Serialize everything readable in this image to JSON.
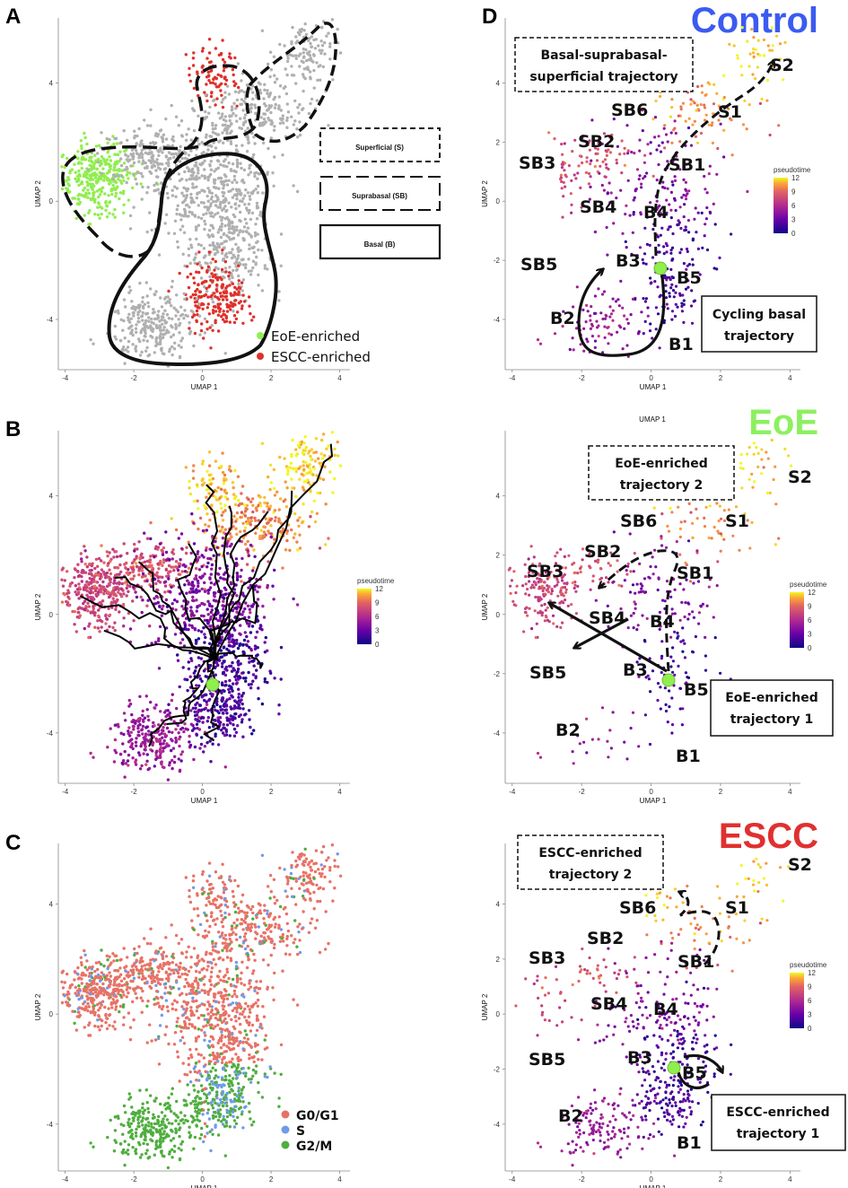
{
  "figure": {
    "panel_letters": [
      "A",
      "B",
      "C",
      "D"
    ],
    "pseudotime_label": "pseudotime",
    "colors": {
      "eoe": "#90ee4f",
      "escc": "#e0302a",
      "grey": "#b0b0b0",
      "control_title": "#3b5bf0",
      "eoe_title": "#8cf060",
      "escc_title": "#e03030",
      "g0g1": "#e87266",
      "s": "#6f9be8",
      "g2m": "#4fae3e"
    }
  },
  "chart_data": [
    {
      "panel": "A",
      "type": "scatter",
      "title": "",
      "xlabel": "UMAP 1",
      "ylabel": "UMAP 2",
      "x_ticks": [
        "-4",
        "-2",
        "0",
        "2",
        "4"
      ],
      "y_ticks": [
        "4",
        "0",
        "-4"
      ],
      "xlim": [
        -4.2,
        4.3
      ],
      "ylim": [
        -5.7,
        6.2
      ],
      "region_labels": [
        "Superficial (S)",
        "Suprabasal (SB)",
        "Basal (B)"
      ],
      "legend": [
        {
          "name": "EoE-enriched",
          "color": "#90ee4f"
        },
        {
          "name": "ESCC-enriched",
          "color": "#e0302a"
        }
      ]
    },
    {
      "panel": "B",
      "type": "scatter",
      "title": "",
      "xlabel": "UMAP 1",
      "ylabel": "UMAP 2",
      "x_ticks": [
        "-4",
        "-2",
        "0",
        "2",
        "4"
      ],
      "y_ticks": [
        "4",
        "0",
        "-4"
      ],
      "xlim": [
        -4.2,
        4.3
      ],
      "ylim": [
        -5.7,
        6.2
      ],
      "colorbar": {
        "label": "pseudotime",
        "ticks": [
          "12",
          "9",
          "6",
          "3",
          "0"
        ],
        "range": [
          0,
          12
        ]
      }
    },
    {
      "panel": "C",
      "type": "scatter",
      "title": "",
      "xlabel": "UMAP 1",
      "ylabel": "UMAP 2",
      "x_ticks": [
        "-4",
        "-2",
        "0",
        "2",
        "4"
      ],
      "y_ticks": [
        "4",
        "0",
        "-4"
      ],
      "xlim": [
        -4.2,
        4.3
      ],
      "ylim": [
        -5.7,
        6.2
      ],
      "legend": [
        {
          "name": "G0/G1",
          "color": "#e87266"
        },
        {
          "name": "S",
          "color": "#6f9be8"
        },
        {
          "name": "G2/M",
          "color": "#4fae3e"
        }
      ]
    },
    {
      "panel": "D-Control",
      "type": "scatter",
      "title": "Control",
      "xlabel": "UMAP 1",
      "ylabel": "UMAP 2",
      "x_ticks": [
        "-4",
        "-2",
        "0",
        "2",
        "4"
      ],
      "y_ticks": [
        "4",
        "2",
        "0",
        "-2",
        "-4"
      ],
      "xlim": [
        -4.2,
        4.3
      ],
      "ylim": [
        -5.7,
        6.2
      ],
      "colorbar": {
        "label": "pseudotime",
        "ticks": [
          "12",
          "9",
          "6",
          "3",
          "0"
        ],
        "range": [
          0,
          12
        ]
      },
      "cluster_labels": [
        "S2",
        "SB6",
        "S1",
        "SB2",
        "SB3",
        "SB1",
        "SB4",
        "B4",
        "B3",
        "B5",
        "SB5",
        "B2",
        "B1"
      ],
      "boxes": [
        "Basal-suprabasal-superficial trajectory",
        "Cycling basal trajectory"
      ]
    },
    {
      "panel": "D-EoE",
      "type": "scatter",
      "title": "EoE",
      "xlabel": "UMAP 1",
      "ylabel": "UMAP 2",
      "x_ticks": [
        "-4",
        "-2",
        "0",
        "2",
        "4"
      ],
      "y_ticks": [
        "4",
        "2",
        "0",
        "-2",
        "-4"
      ],
      "xlim": [
        -4.2,
        4.3
      ],
      "ylim": [
        -5.7,
        6.2
      ],
      "colorbar": {
        "label": "pseudotime",
        "ticks": [
          "12",
          "9",
          "6",
          "3",
          "0"
        ],
        "range": [
          0,
          12
        ]
      },
      "cluster_labels": [
        "S2",
        "SB6",
        "S1",
        "SB2",
        "SB1",
        "SB3",
        "SB4",
        "B4",
        "SB5",
        "B3",
        "B5",
        "B2",
        "B1"
      ],
      "boxes": [
        "EoE-enriched trajectory 2",
        "EoE-enriched trajectory 1"
      ]
    },
    {
      "panel": "D-ESCC",
      "type": "scatter",
      "title": "ESCC",
      "xlabel": "UMAP 1",
      "ylabel": "UMAP 2",
      "x_ticks": [
        "-4",
        "-2",
        "0",
        "2",
        "4"
      ],
      "y_ticks": [
        "4",
        "2",
        "0",
        "-2",
        "-4"
      ],
      "xlim": [
        -4.2,
        4.3
      ],
      "ylim": [
        -5.7,
        6.2
      ],
      "colorbar": {
        "label": "pseudotime",
        "ticks": [
          "12",
          "9",
          "6",
          "3",
          "0"
        ],
        "range": [
          0,
          12
        ]
      },
      "cluster_labels": [
        "S2",
        "SB6",
        "S1",
        "SB2",
        "SB3",
        "SB1",
        "SB4",
        "B4",
        "SB5",
        "B3",
        "B5",
        "B2",
        "B1"
      ],
      "boxes": [
        "ESCC-enriched trajectory 2",
        "ESCC-enriched trajectory 1"
      ]
    }
  ]
}
